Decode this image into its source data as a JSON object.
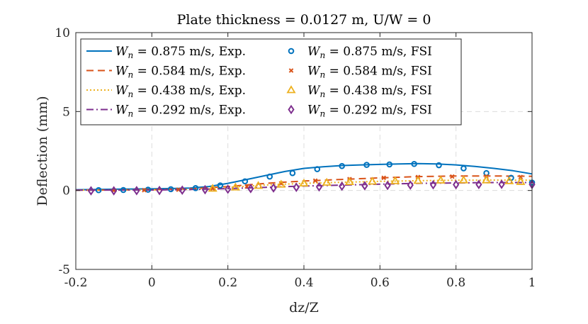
{
  "chart_data": {
    "type": "line",
    "title": "Plate thickness = 0.0127 m, U/W = 0",
    "xlabel": "dz/Z",
    "ylabel": "Deflection (mm)",
    "xlim": [
      -0.2,
      1
    ],
    "ylim": [
      -5,
      10
    ],
    "xticks": [
      -0.2,
      0,
      0.2,
      0.4,
      0.6,
      0.8,
      1
    ],
    "yticks": [
      -5,
      0,
      5,
      10
    ],
    "xtick_labels": [
      "-0.2",
      "0",
      "0.2",
      "0.4",
      "0.6",
      "0.8",
      "1"
    ],
    "ytick_labels": [
      "-5",
      "0",
      "5",
      "10"
    ],
    "grid": true,
    "legend_position": "top-left",
    "series": [
      {
        "name": "W_n = 0.875 m/s, Exp.",
        "style": "line-solid",
        "color": "#0072BD",
        "x": [
          -0.2,
          -0.1,
          0.0,
          0.1,
          0.15,
          0.2,
          0.25,
          0.3,
          0.35,
          0.4,
          0.45,
          0.5,
          0.55,
          0.6,
          0.65,
          0.7,
          0.75,
          0.8,
          0.85,
          0.9,
          0.95,
          1.0
        ],
        "y": [
          0.05,
          0.08,
          0.1,
          0.15,
          0.25,
          0.45,
          0.7,
          0.95,
          1.2,
          1.4,
          1.5,
          1.58,
          1.62,
          1.65,
          1.68,
          1.7,
          1.68,
          1.62,
          1.52,
          1.4,
          1.25,
          1.05
        ]
      },
      {
        "name": "W_n = 0.584 m/s, Exp.",
        "style": "line-dashed",
        "color": "#D95319",
        "x": [
          -0.2,
          0.0,
          0.1,
          0.2,
          0.3,
          0.4,
          0.5,
          0.6,
          0.7,
          0.8,
          0.9,
          1.0
        ],
        "y": [
          0.02,
          0.05,
          0.1,
          0.25,
          0.45,
          0.6,
          0.7,
          0.8,
          0.88,
          0.92,
          0.92,
          0.9
        ]
      },
      {
        "name": "W_n = 0.438 m/s, Exp.",
        "style": "line-dotted",
        "color": "#EDB120",
        "x": [
          -0.2,
          0.0,
          0.1,
          0.2,
          0.3,
          0.4,
          0.5,
          0.6,
          0.7,
          0.8,
          0.9,
          1.0
        ],
        "y": [
          0.02,
          0.04,
          0.08,
          0.2,
          0.35,
          0.45,
          0.52,
          0.58,
          0.62,
          0.65,
          0.66,
          0.65
        ]
      },
      {
        "name": "W_n = 0.292 m/s, Exp.",
        "style": "line-dashdot",
        "color": "#7E2F8E",
        "x": [
          -0.2,
          0.0,
          0.1,
          0.2,
          0.3,
          0.4,
          0.5,
          0.6,
          0.7,
          0.8,
          0.9,
          1.0
        ],
        "y": [
          0.02,
          0.03,
          0.06,
          0.12,
          0.2,
          0.28,
          0.34,
          0.4,
          0.45,
          0.48,
          0.5,
          0.5
        ]
      },
      {
        "name": "W_n = 0.875 m/s, FSI",
        "style": "marker-circle",
        "color": "#0072BD",
        "x": [
          -0.14,
          -0.075,
          -0.01,
          0.05,
          0.115,
          0.18,
          0.245,
          0.31,
          0.37,
          0.435,
          0.5,
          0.565,
          0.625,
          0.69,
          0.755,
          0.82,
          0.88,
          0.945,
          1.0
        ],
        "y": [
          0.02,
          0.03,
          0.05,
          0.08,
          0.15,
          0.32,
          0.58,
          0.88,
          1.1,
          1.35,
          1.55,
          1.62,
          1.65,
          1.68,
          1.6,
          1.4,
          1.1,
          0.8,
          0.5
        ]
      },
      {
        "name": "W_n = 0.584 m/s, FSI",
        "style": "marker-x",
        "color": "#D95319",
        "x": [
          -0.1,
          -0.02,
          0.07,
          0.16,
          0.25,
          0.34,
          0.43,
          0.52,
          0.61,
          0.7,
          0.79,
          0.88,
          0.97
        ],
        "y": [
          0.0,
          0.02,
          0.05,
          0.12,
          0.25,
          0.45,
          0.62,
          0.72,
          0.8,
          0.85,
          0.88,
          0.88,
          0.85
        ]
      },
      {
        "name": "W_n = 0.438 m/s, FSI",
        "style": "marker-triangle",
        "color": "#EDB120",
        "x": [
          0.16,
          0.22,
          0.28,
          0.34,
          0.4,
          0.46,
          0.52,
          0.58,
          0.64,
          0.7,
          0.76,
          0.82,
          0.88,
          0.94,
          0.97
        ],
        "y": [
          0.12,
          0.2,
          0.3,
          0.38,
          0.45,
          0.5,
          0.54,
          0.57,
          0.6,
          0.62,
          0.64,
          0.65,
          0.65,
          0.6,
          0.55
        ]
      },
      {
        "name": "W_n = 0.292 m/s, FSI",
        "style": "marker-diamond",
        "color": "#7E2F8E",
        "x": [
          -0.16,
          -0.1,
          -0.04,
          0.02,
          0.08,
          0.14,
          0.2,
          0.26,
          0.32,
          0.38,
          0.44,
          0.5,
          0.56,
          0.62,
          0.68,
          0.74,
          0.8,
          0.86,
          0.92,
          1.0
        ],
        "y": [
          -0.02,
          -0.02,
          -0.01,
          0.0,
          0.02,
          0.05,
          0.08,
          0.12,
          0.16,
          0.2,
          0.23,
          0.27,
          0.3,
          0.32,
          0.34,
          0.36,
          0.37,
          0.38,
          0.39,
          0.38
        ]
      }
    ],
    "legend": [
      {
        "prefix": "W",
        "sub": "n",
        "text": " = 0.875 m/s, Exp.",
        "series": 0
      },
      {
        "prefix": "W",
        "sub": "n",
        "text": " = 0.875 m/s, FSI",
        "series": 4
      },
      {
        "prefix": "W",
        "sub": "n",
        "text": " = 0.584 m/s, Exp.",
        "series": 1
      },
      {
        "prefix": "W",
        "sub": "n",
        "text": " = 0.584 m/s, FSI",
        "series": 5
      },
      {
        "prefix": "W",
        "sub": "n",
        "text": " = 0.438 m/s, Exp.",
        "series": 2
      },
      {
        "prefix": "W",
        "sub": "n",
        "text": " = 0.438 m/s, FSI",
        "series": 6
      },
      {
        "prefix": "W",
        "sub": "n",
        "text": " = 0.292 m/s, Exp.",
        "series": 3
      },
      {
        "prefix": "W",
        "sub": "n",
        "text": " = 0.292 m/s, FSI",
        "series": 7
      }
    ]
  }
}
